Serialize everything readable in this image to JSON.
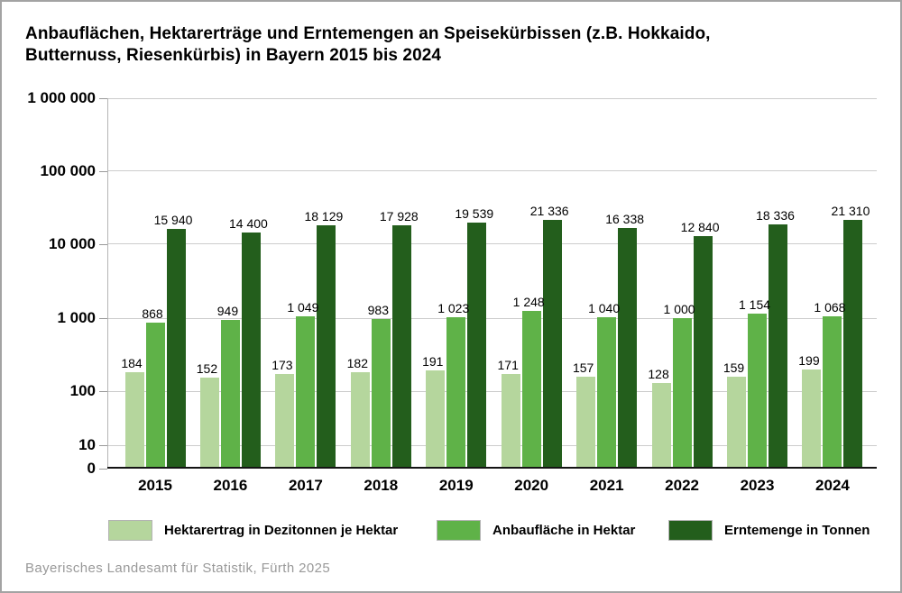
{
  "header": {
    "title_line1": "Anbauflächen, Hektarerträge und Erntemengen an Speisekürbissen (z.B. Hokkaido,",
    "title_line2": "Butternuss, Riesenkürbis) in Bayern 2015 bis 2024"
  },
  "chart_data": {
    "type": "bar",
    "title": "Anbauflächen, Hektarerträge und Erntemengen an Speisekürbissen (z.B. Hokkaido, Butternuss, Riesenkürbis) in Bayern 2015 bis 2024",
    "categories": [
      "2015",
      "2016",
      "2017",
      "2018",
      "2019",
      "2020",
      "2021",
      "2022",
      "2023",
      "2024"
    ],
    "series": [
      {
        "name": "Hektarertrag in Dezitonnen je Hektar",
        "color": "#b5d69d",
        "values": [
          184,
          152,
          173,
          182,
          191,
          171,
          157,
          128,
          159,
          199
        ]
      },
      {
        "name": "Anbaufläche in Hektar",
        "color": "#5fb248",
        "values": [
          868,
          949,
          1049,
          983,
          1023,
          1248,
          1040,
          1000,
          1154,
          1068
        ]
      },
      {
        "name": "Erntemenge in Tonnen",
        "color": "#235e1c",
        "values": [
          15940,
          14400,
          18129,
          17928,
          19539,
          21336,
          16338,
          12840,
          18336,
          21310
        ]
      }
    ],
    "yscale": "log",
    "ylim": [
      0,
      1000000
    ],
    "yticks": [
      0,
      10,
      100,
      1000,
      10000,
      100000,
      1000000
    ],
    "ytick_labels": [
      "0",
      "10",
      "100",
      "1 000",
      "10 000",
      "100 000",
      "1 000 000"
    ],
    "xlabel": "",
    "ylabel": "",
    "grid": true,
    "legend_position": "bottom",
    "value_labels": true
  },
  "footer": {
    "source": "Bayerisches Landesamt für Statistik, Fürth 2025"
  },
  "colors": {
    "grid": "#cccccc",
    "axis_line": "#b5b5b5",
    "baseline": "#141414",
    "tick": "#999999",
    "source_text": "#999999",
    "frame_border": "#a3a3a3"
  }
}
